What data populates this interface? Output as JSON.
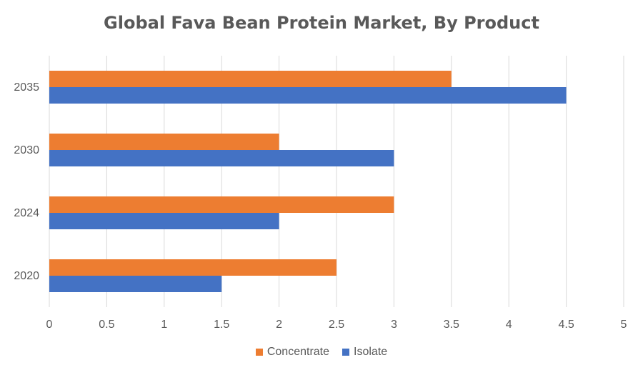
{
  "chart_data": {
    "type": "bar",
    "orientation": "horizontal",
    "title": "Global Fava Bean Protein Market, By Product",
    "xlabel": "",
    "ylabel": "",
    "categories": [
      "2020",
      "2024",
      "2030",
      "2035"
    ],
    "series": [
      {
        "name": "Concentrate",
        "color": "#ED7D31",
        "values": [
          2.5,
          3,
          2,
          3.5
        ]
      },
      {
        "name": "Isolate",
        "color": "#4472C4",
        "values": [
          1.5,
          2,
          3,
          4.5
        ]
      }
    ],
    "xlim": [
      0,
      5
    ],
    "x_ticks": [
      "0",
      "0.5",
      "1",
      "1.5",
      "2",
      "2.5",
      "3",
      "3.5",
      "4",
      "4.5",
      "5"
    ],
    "grid": true,
    "legend_position": "bottom"
  }
}
